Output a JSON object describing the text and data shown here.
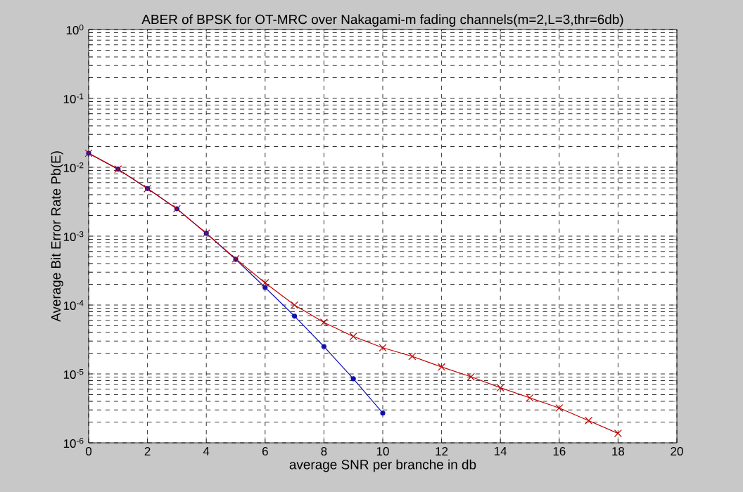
{
  "chart_data": {
    "type": "line",
    "title": "ABER of BPSK for OT-MRC over Nakagami-m fading channels(m=2,L=3,thr=6db)",
    "xlabel": "average SNR per branche in db",
    "ylabel": "Average Bit Error Rate Pb(E)",
    "log": "y",
    "grid": true,
    "line_style": "solid",
    "xlim": [
      0,
      20
    ],
    "xticks": [
      0,
      2,
      4,
      6,
      8,
      10,
      12,
      14,
      16,
      18,
      20
    ],
    "ylim": [
      1e-06,
      1
    ],
    "yticks": [
      {
        "value": 1e-06,
        "label": "10$^{-6}$"
      },
      {
        "value": 1e-05,
        "label": "10$^{-5}$"
      },
      {
        "value": 0.0001,
        "label": "10$^{-4}$"
      },
      {
        "value": 0.001,
        "label": "10$^{-3}$"
      },
      {
        "value": 0.01,
        "label": "10$^{-2}$"
      },
      {
        "value": 0.1,
        "label": "10$^{-1}$"
      },
      {
        "value": 1,
        "label": "10$^{0}$"
      }
    ],
    "series": [
      {
        "color": "#c00000",
        "marker": "cross",
        "x": [
          0,
          1,
          2,
          3,
          4,
          5,
          6,
          7,
          8,
          9,
          10,
          11,
          12,
          13,
          14,
          15,
          16,
          17,
          18
        ],
        "values": [
          0.016,
          0.0094,
          0.0049,
          0.0025,
          0.0011,
          0.00047,
          0.00021,
          0.0001,
          5.6e-05,
          3.5e-05,
          2.4e-05,
          1.8e-05,
          1.26e-05,
          9.1e-06,
          6.3e-06,
          4.5e-06,
          3.2e-06,
          2.1e-06,
          1.37e-06
        ]
      },
      {
        "color": "#1010b0",
        "marker": "circle",
        "x": [
          0,
          1,
          2,
          3,
          4,
          5,
          6,
          7,
          8,
          9,
          10
        ],
        "values": [
          0.016,
          0.0094,
          0.0049,
          0.0025,
          0.0011,
          0.00046,
          0.00018,
          6.9e-05,
          2.5e-05,
          8.5e-06,
          2.7e-06
        ]
      }
    ]
  }
}
